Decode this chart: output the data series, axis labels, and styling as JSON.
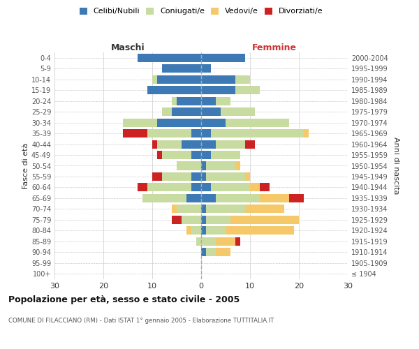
{
  "age_groups": [
    "100+",
    "95-99",
    "90-94",
    "85-89",
    "80-84",
    "75-79",
    "70-74",
    "65-69",
    "60-64",
    "55-59",
    "50-54",
    "45-49",
    "40-44",
    "35-39",
    "30-34",
    "25-29",
    "20-24",
    "15-19",
    "10-14",
    "5-9",
    "0-4"
  ],
  "birth_years": [
    "≤ 1904",
    "1905-1909",
    "1910-1914",
    "1915-1919",
    "1920-1924",
    "1925-1929",
    "1930-1934",
    "1935-1939",
    "1940-1944",
    "1945-1949",
    "1950-1954",
    "1955-1959",
    "1960-1964",
    "1965-1969",
    "1970-1974",
    "1975-1979",
    "1980-1984",
    "1985-1989",
    "1990-1994",
    "1995-1999",
    "2000-2004"
  ],
  "males": {
    "celibi": [
      0,
      0,
      0,
      0,
      0,
      0,
      0,
      3,
      2,
      2,
      0,
      2,
      4,
      2,
      9,
      6,
      5,
      11,
      9,
      8,
      13
    ],
    "coniugati": [
      0,
      0,
      0,
      1,
      2,
      4,
      5,
      9,
      9,
      6,
      5,
      6,
      5,
      9,
      7,
      2,
      1,
      0,
      1,
      0,
      0
    ],
    "vedovi": [
      0,
      0,
      0,
      0,
      1,
      0,
      1,
      0,
      0,
      0,
      0,
      0,
      0,
      0,
      0,
      0,
      0,
      0,
      0,
      0,
      0
    ],
    "divorziati": [
      0,
      0,
      0,
      0,
      0,
      2,
      0,
      0,
      2,
      2,
      0,
      1,
      1,
      5,
      0,
      0,
      0,
      0,
      0,
      0,
      0
    ]
  },
  "females": {
    "nubili": [
      0,
      0,
      1,
      0,
      1,
      1,
      1,
      3,
      2,
      1,
      1,
      2,
      3,
      2,
      5,
      4,
      3,
      7,
      7,
      2,
      9
    ],
    "coniugate": [
      0,
      0,
      2,
      3,
      4,
      5,
      8,
      9,
      8,
      8,
      6,
      6,
      6,
      19,
      13,
      7,
      3,
      5,
      3,
      0,
      0
    ],
    "vedove": [
      0,
      0,
      3,
      4,
      14,
      14,
      8,
      6,
      2,
      1,
      1,
      0,
      0,
      1,
      0,
      0,
      0,
      0,
      0,
      0,
      0
    ],
    "divorziate": [
      0,
      0,
      0,
      1,
      0,
      0,
      0,
      3,
      2,
      0,
      0,
      0,
      2,
      0,
      0,
      0,
      0,
      0,
      0,
      0,
      0
    ]
  },
  "colors": {
    "celibi_nubili": "#3d7ab5",
    "coniugati": "#c8dba0",
    "vedovi": "#f5c96a",
    "divorziati": "#cc2222"
  },
  "title": "Popolazione per età, sesso e stato civile - 2005",
  "subtitle": "COMUNE DI FILACCIANO (RM) - Dati ISTAT 1° gennaio 2005 - Elaborazione TUTTITALIA.IT",
  "xlabel_left": "Maschi",
  "xlabel_right": "Femmine",
  "ylabel_left": "Fasce di età",
  "ylabel_right": "Anni di nascita",
  "xlim": 30,
  "legend_labels": [
    "Celibi/Nubili",
    "Coniugati/e",
    "Vedovi/e",
    "Divorziati/e"
  ],
  "bg_color": "#ffffff",
  "grid_color": "#cccccc"
}
